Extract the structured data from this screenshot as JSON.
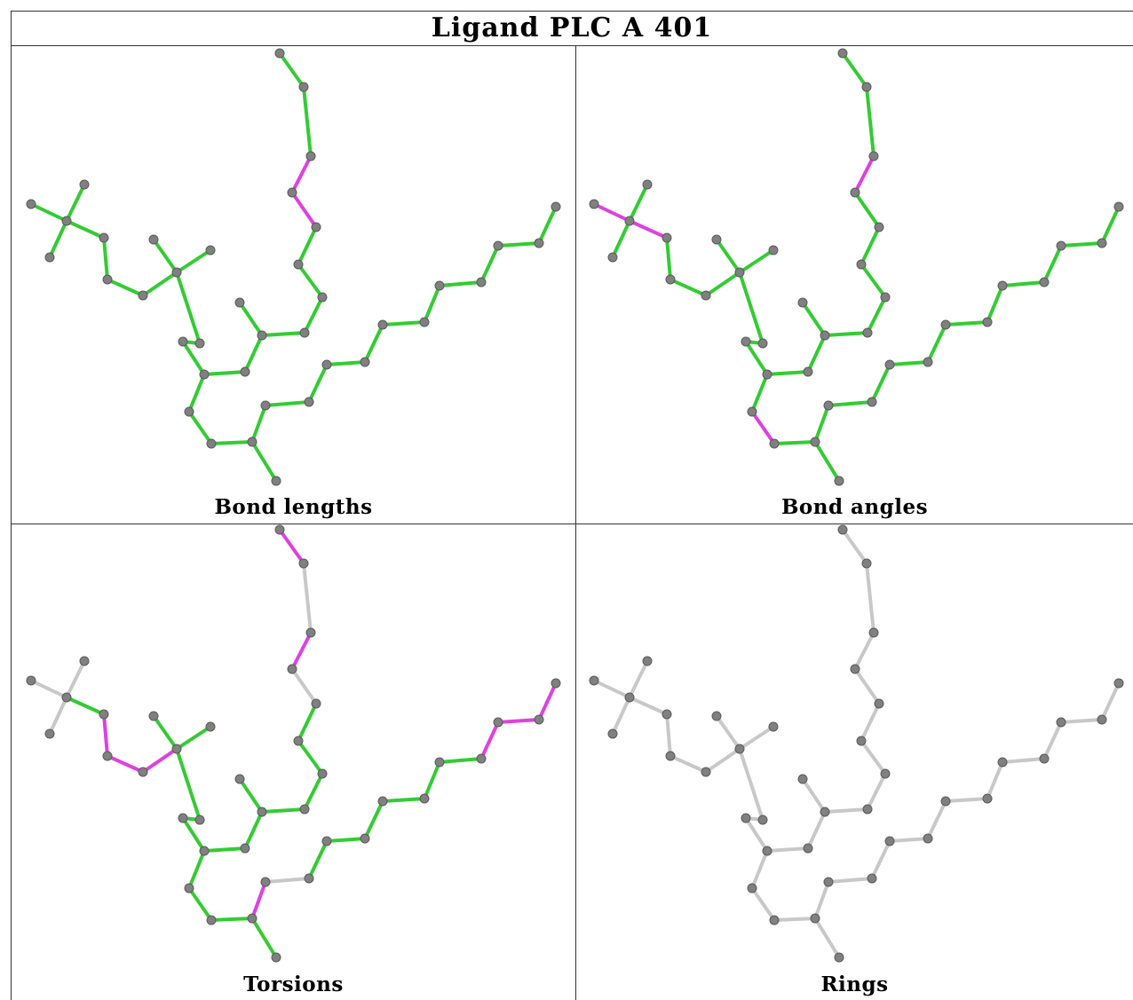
{
  "title": "Ligand PLC A 401",
  "panels": [
    {
      "id": "bond-lengths",
      "label": "Bond lengths",
      "highlight": [
        [
          19,
          20
        ],
        [
          20,
          21
        ],
        [
          24,
          25
        ]
      ],
      "mode": "normal"
    },
    {
      "id": "bond-angles",
      "label": "Bond angles",
      "highlight": [
        [
          0,
          1
        ],
        [
          1,
          4
        ],
        [
          20,
          21
        ],
        [
          25,
          26
        ],
        [
          26,
          27
        ]
      ],
      "mode": "normal"
    },
    {
      "id": "torsions",
      "label": "Torsions",
      "highlight": [
        [
          4,
          5
        ],
        [
          5,
          6
        ],
        [
          6,
          7
        ],
        [
          8,
          9
        ],
        [
          20,
          21
        ],
        [
          24,
          25
        ],
        [
          21,
          22
        ],
        [
          22,
          23
        ],
        [
          27,
          28
        ],
        [
          35,
          36
        ],
        [
          36,
          37
        ],
        [
          37,
          38
        ],
        [
          47,
          48
        ],
        [
          48,
          49
        ]
      ],
      "gray": [
        [
          0,
          1
        ],
        [
          1,
          2
        ],
        [
          1,
          3
        ],
        [
          8,
          10
        ],
        [
          8,
          11
        ],
        [
          21,
          23
        ],
        [
          23,
          24
        ],
        [
          26,
          27
        ],
        [
          19,
          20
        ],
        [
          28,
          29
        ],
        [
          49,
          50
        ]
      ],
      "mode": "torsion"
    },
    {
      "id": "rings",
      "label": "Rings",
      "highlight": [],
      "mode": "gray"
    }
  ],
  "colors": {
    "bond": "#33cc33",
    "highlight": "#e040e0",
    "gray": "#c8c8c8",
    "atom": "#808080"
  }
}
